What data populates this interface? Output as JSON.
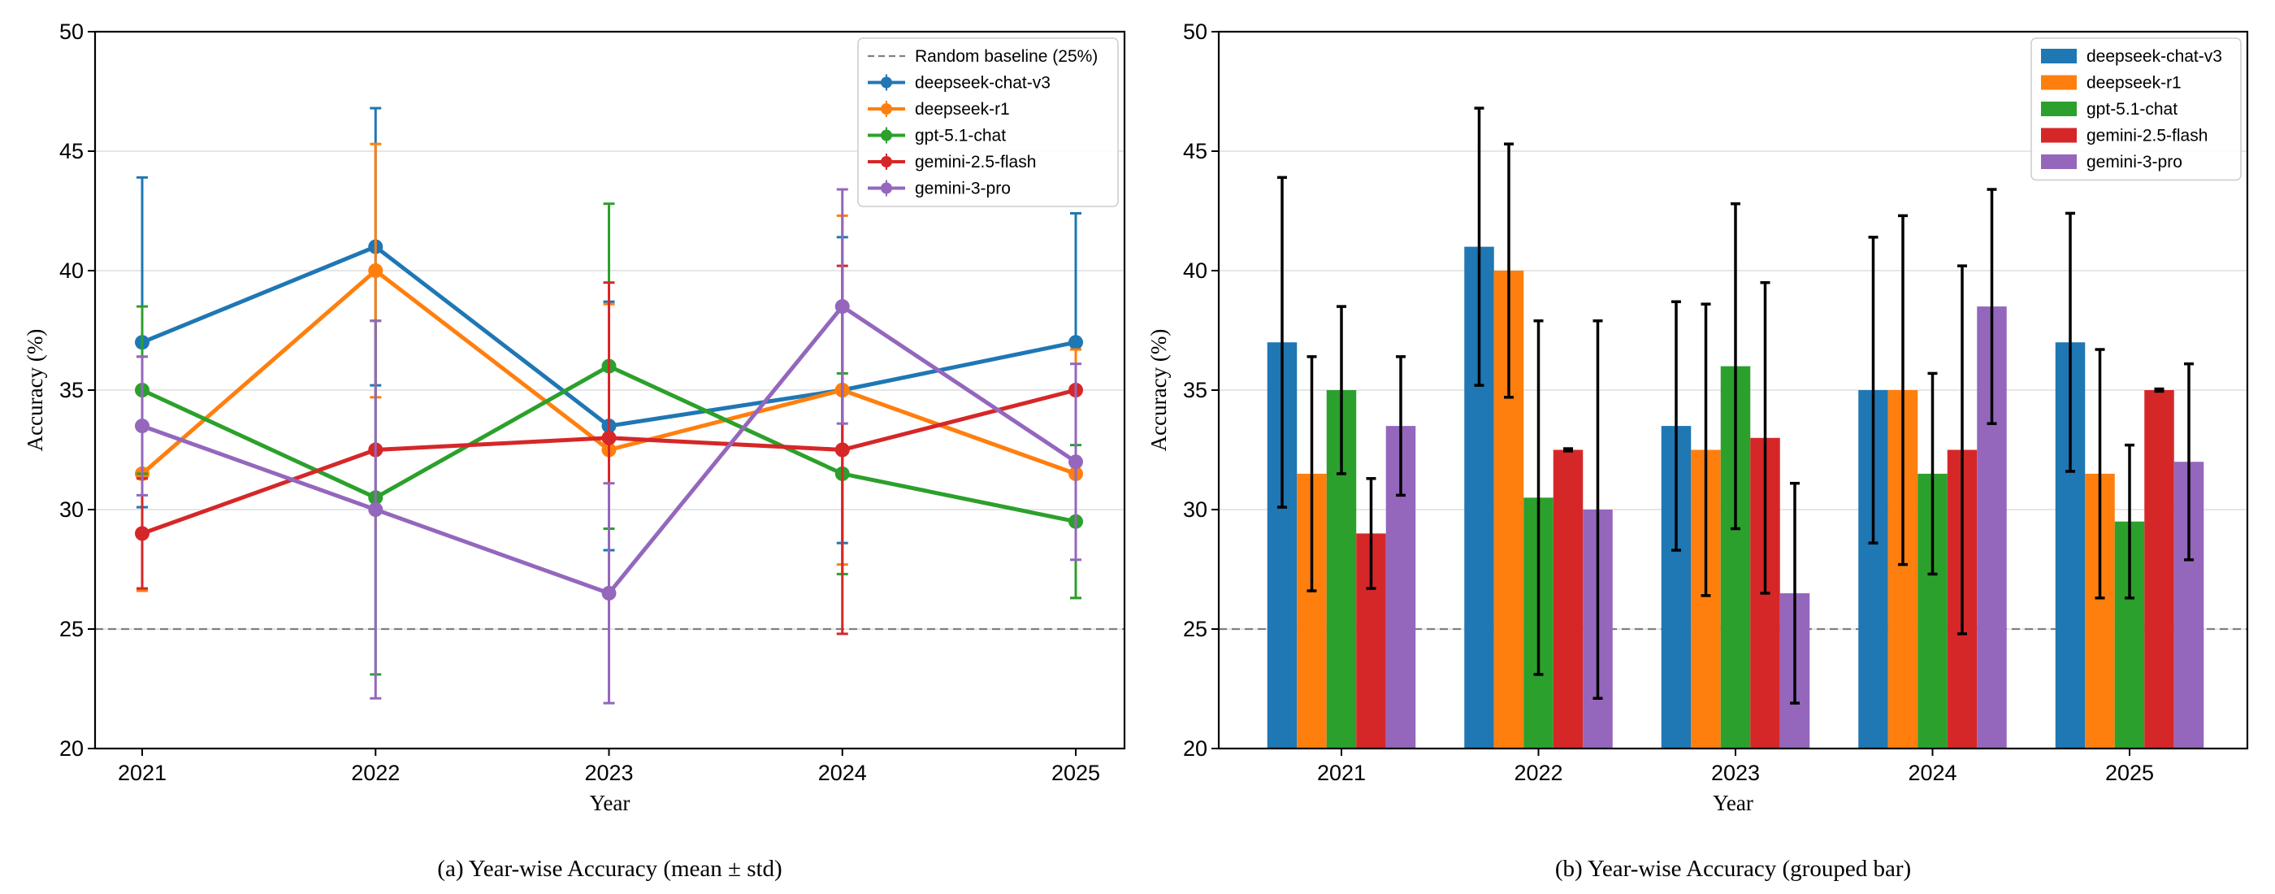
{
  "colors": {
    "deepseek-chat-v3": "#1f77b4",
    "deepseek-r1": "#ff7f0e",
    "gpt-5.1-chat": "#2ca02c",
    "gemini-2.5-flash": "#d62728",
    "gemini-3-pro": "#9467bd",
    "baseline": "#808080"
  },
  "chart_data": [
    {
      "type": "line",
      "title": "",
      "caption": "(a) Year-wise Accuracy (mean ± std)",
      "xlabel": "Year",
      "ylabel": "Accuracy (%)",
      "x": [
        "2021",
        "2022",
        "2023",
        "2024",
        "2025"
      ],
      "ylim": [
        20,
        50
      ],
      "yticks": [
        20,
        25,
        30,
        35,
        40,
        45,
        50
      ],
      "grid": "y",
      "legend_position": "top-right",
      "baseline": {
        "label": "Random baseline (25%)",
        "value": 25
      },
      "series": [
        {
          "name": "deepseek-chat-v3",
          "values": [
            37,
            41,
            33.5,
            35,
            37
          ],
          "std": [
            6.9,
            5.8,
            5.2,
            6.4,
            5.4
          ]
        },
        {
          "name": "deepseek-r1",
          "values": [
            31.5,
            40,
            32.5,
            35,
            31.5
          ],
          "std": [
            4.9,
            5.3,
            6.1,
            7.3,
            5.2
          ]
        },
        {
          "name": "gpt-5.1-chat",
          "values": [
            35,
            30.5,
            36,
            31.5,
            29.5
          ],
          "std": [
            3.5,
            7.4,
            6.8,
            4.2,
            3.2
          ]
        },
        {
          "name": "gemini-2.5-flash",
          "values": [
            29,
            32.5,
            33,
            32.5,
            35
          ],
          "std": [
            2.3,
            0.05,
            6.5,
            7.7,
            0.05
          ]
        },
        {
          "name": "gemini-3-pro",
          "values": [
            33.5,
            30,
            26.5,
            38.5,
            32
          ],
          "std": [
            2.9,
            7.9,
            4.6,
            4.9,
            4.1
          ]
        }
      ]
    },
    {
      "type": "bar",
      "title": "",
      "caption": "(b) Year-wise Accuracy (grouped bar)",
      "xlabel": "Year",
      "ylabel": "Accuracy (%)",
      "categories": [
        "2021",
        "2022",
        "2023",
        "2024",
        "2025"
      ],
      "ylim": [
        20,
        50
      ],
      "yticks": [
        20,
        25,
        30,
        35,
        40,
        45,
        50
      ],
      "grid": "y",
      "legend_position": "top-right",
      "baseline": {
        "label": "",
        "value": 25
      },
      "series": [
        {
          "name": "deepseek-chat-v3",
          "values": [
            37,
            41,
            33.5,
            35,
            37
          ],
          "std": [
            6.9,
            5.8,
            5.2,
            6.4,
            5.4
          ]
        },
        {
          "name": "deepseek-r1",
          "values": [
            31.5,
            40,
            32.5,
            35,
            31.5
          ],
          "std": [
            4.9,
            5.3,
            6.1,
            7.3,
            5.2
          ]
        },
        {
          "name": "gpt-5.1-chat",
          "values": [
            35,
            30.5,
            36,
            31.5,
            29.5
          ],
          "std": [
            3.5,
            7.4,
            6.8,
            4.2,
            3.2
          ]
        },
        {
          "name": "gemini-2.5-flash",
          "values": [
            29,
            32.5,
            33,
            32.5,
            35
          ],
          "std": [
            2.3,
            0.05,
            6.5,
            7.7,
            0.05
          ]
        },
        {
          "name": "gemini-3-pro",
          "values": [
            33.5,
            30,
            26.5,
            38.5,
            32
          ],
          "std": [
            2.9,
            7.9,
            4.6,
            4.9,
            4.1
          ]
        }
      ]
    }
  ]
}
